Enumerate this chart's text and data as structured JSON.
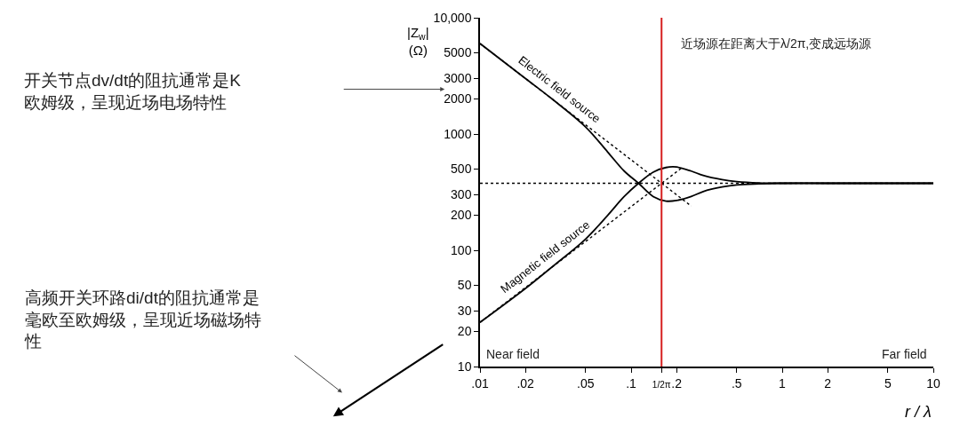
{
  "chart_data": {
    "type": "line",
    "xlabel": "r / λ",
    "ylabel": "|Z$_{w}$|\n(Ω)",
    "log": "xy",
    "xlim": [
      0.01,
      10
    ],
    "ylim": [
      10,
      10000
    ],
    "xticks": [
      {
        "value": 0.01,
        "label": ".01"
      },
      {
        "value": 0.02,
        "label": ".02"
      },
      {
        "value": 0.05,
        "label": ".05"
      },
      {
        "value": 0.1,
        "label": ".1"
      },
      {
        "value": 0.159,
        "label": "1/2π"
      },
      {
        "value": 0.2,
        "label": ".2"
      },
      {
        "value": 0.5,
        "label": ".5"
      },
      1,
      2,
      5,
      10
    ],
    "yticks": [
      10,
      20,
      30,
      50,
      100,
      200,
      300,
      500,
      1000,
      2000,
      3000,
      5000,
      {
        "value": 10000,
        "label": "10,000"
      }
    ],
    "legend": false,
    "series": [
      {
        "name": "Electric field source",
        "color": "#000000",
        "x": [
          0.01,
          0.02,
          0.03,
          0.05,
          0.07,
          0.09,
          0.112,
          0.14,
          0.17,
          0.2,
          0.25,
          0.3,
          0.4,
          0.5,
          0.7,
          1,
          2,
          5,
          10
        ],
        "values": [
          6000,
          3000,
          2000,
          1150,
          700,
          480,
          377,
          290,
          265,
          268,
          290,
          320,
          350,
          365,
          373,
          377,
          377,
          377,
          377
        ]
      },
      {
        "name": "Magnetic field source",
        "color": "#000000",
        "x": [
          0.01,
          0.02,
          0.03,
          0.05,
          0.07,
          0.09,
          0.112,
          0.14,
          0.17,
          0.2,
          0.25,
          0.3,
          0.4,
          0.5,
          0.7,
          1,
          2,
          5,
          10
        ],
        "values": [
          24,
          47,
          72,
          125,
          200,
          290,
          377,
          470,
          515,
          520,
          480,
          440,
          405,
          390,
          380,
          377,
          377,
          377,
          377
        ]
      },
      {
        "color": "#000000",
        "line_style": "dotted",
        "x": [
          0.01,
          0.25
        ],
        "values": [
          6000,
          240
        ]
      },
      {
        "color": "#000000",
        "line_style": "dotted",
        "x": [
          0.01,
          0.22
        ],
        "values": [
          24,
          520
        ]
      }
    ],
    "ref_lines": [
      {
        "axis": "y",
        "value": 377,
        "color": "#000000",
        "line_style": "dotted"
      },
      {
        "axis": "x",
        "value": 0.159,
        "color": "#d62020",
        "line_style": "solid"
      }
    ],
    "annotations": [
      "开关节点dv/dt的阻抗通常是K欧姆级，呈现近场电场特性",
      "高频开关环路di/dt的阻抗通常是毫欧至欧姆级，呈现近场磁场特性",
      "近场源在距离大于λ/2π,变成远场源",
      "Near field",
      "Far field"
    ]
  }
}
